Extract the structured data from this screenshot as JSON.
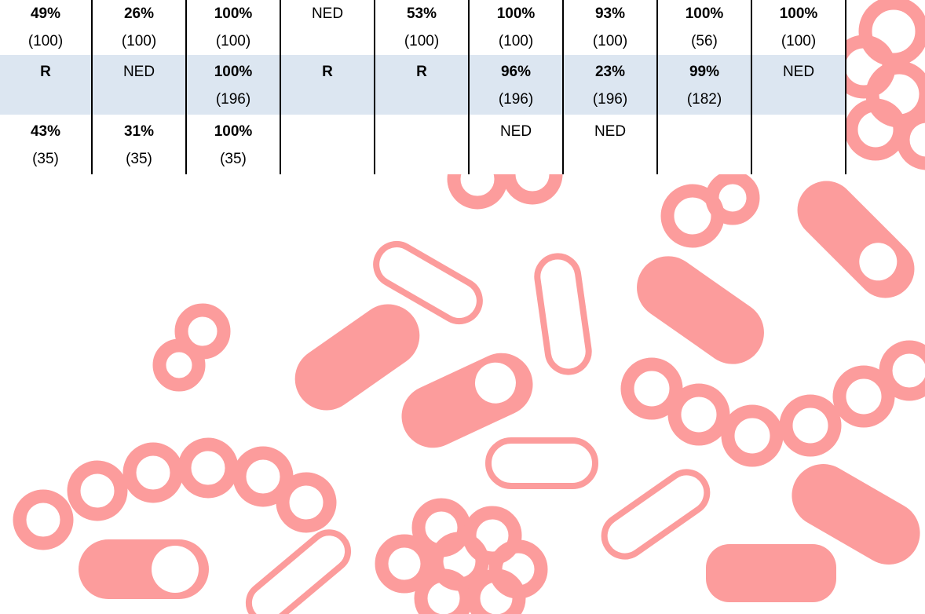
{
  "table": {
    "rows": [
      [
        [
          "49%",
          "(100)"
        ],
        [
          "26%",
          "(100)"
        ],
        [
          "100%",
          "(100)"
        ],
        [
          "NED"
        ],
        [
          "53%",
          "(100)"
        ],
        [
          "100%",
          "(100)"
        ],
        [
          "93%",
          "(100)"
        ],
        [
          "100%",
          "(56)"
        ],
        [
          "100%",
          "(100)"
        ]
      ],
      [
        [
          "R"
        ],
        [
          "NED"
        ],
        [
          "100%",
          "(196)"
        ],
        [
          "R"
        ],
        [
          "R"
        ],
        [
          "96%",
          "(196)"
        ],
        [
          "23%",
          "(196)"
        ],
        [
          "99%",
          "(182)"
        ],
        [
          "NED"
        ]
      ],
      [
        [
          "43%",
          "(35)"
        ],
        [
          "31%",
          "(35)"
        ],
        [
          "100%",
          "(35)"
        ],
        [],
        [],
        [
          "NED"
        ],
        [
          "NED"
        ],
        [],
        []
      ]
    ]
  }
}
